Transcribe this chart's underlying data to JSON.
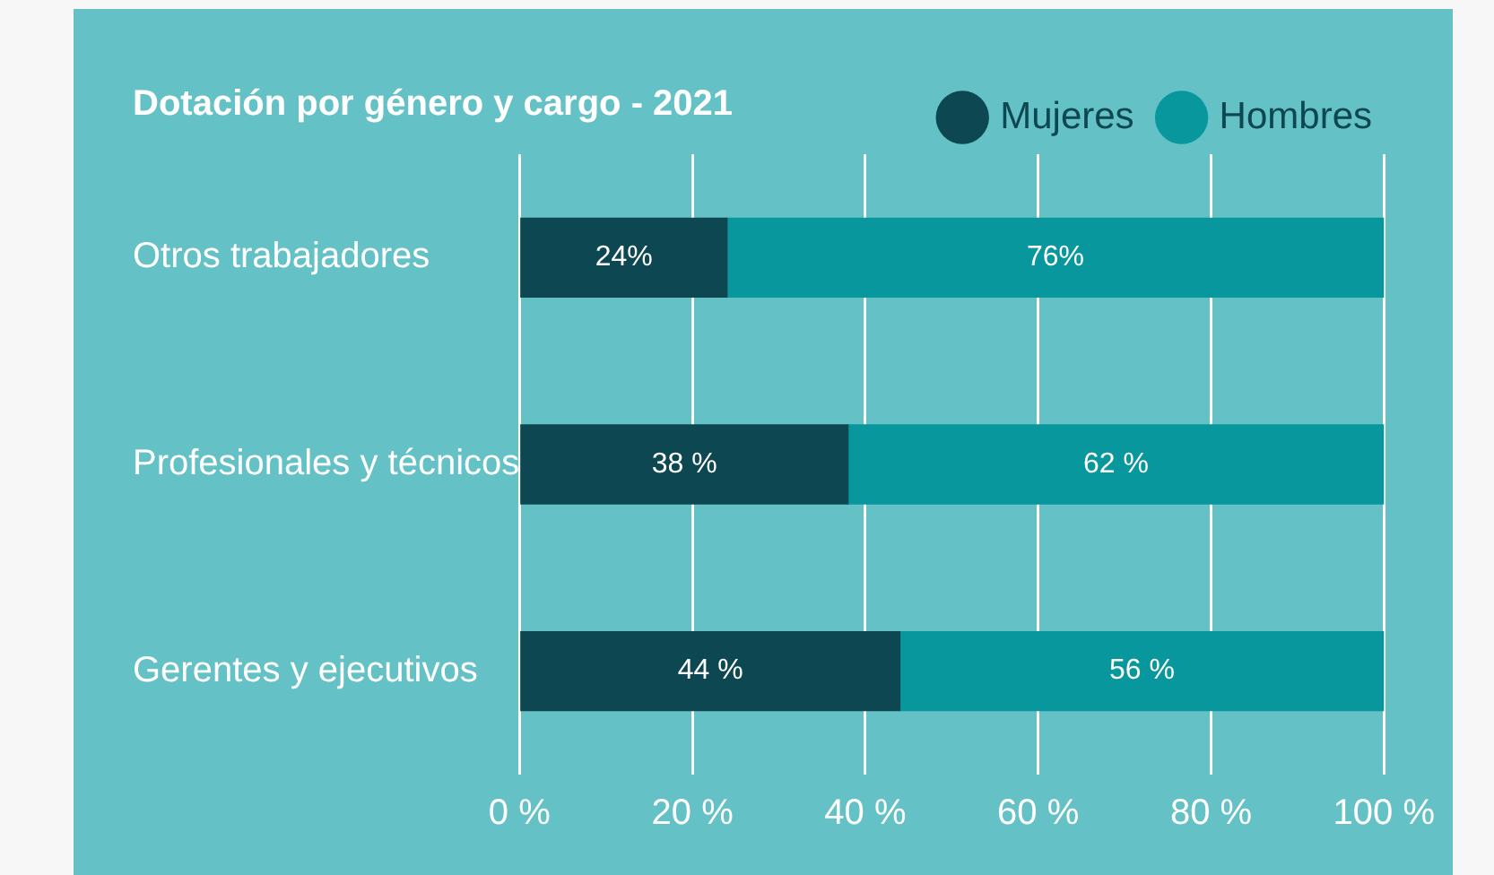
{
  "chart_data": {
    "type": "bar",
    "orientation": "horizontal",
    "stacked": true,
    "title": "Dotación por género y cargo - 2021",
    "categories": [
      "Otros trabajadores",
      "Profesionales y técnicos",
      "Gerentes y ejecutivos"
    ],
    "series": [
      {
        "name": "Mujeres",
        "color": "#0d4852",
        "values": [
          24,
          38,
          44
        ],
        "value_labels": [
          "24%",
          "38 %",
          "44 %"
        ]
      },
      {
        "name": "Hombres",
        "color": "#08979c",
        "values": [
          76,
          62,
          56
        ],
        "value_labels": [
          "76%",
          "62 %",
          "56 %"
        ]
      }
    ],
    "xlim": [
      0,
      100
    ],
    "xticks": [
      {
        "value": 0,
        "label": "0 %"
      },
      {
        "value": 20,
        "label": "20 %"
      },
      {
        "value": 40,
        "label": "40 %"
      },
      {
        "value": 60,
        "label": "60 %"
      },
      {
        "value": 80,
        "label": "80 %"
      },
      {
        "value": 100,
        "label": "100 %"
      }
    ],
    "grid": "x",
    "legend": "top right"
  }
}
